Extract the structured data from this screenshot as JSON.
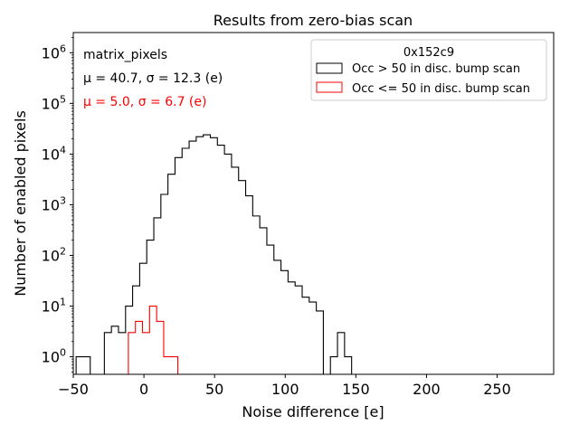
{
  "chart_data": {
    "type": "histogram",
    "title": "Results from zero-bias scan",
    "xlabel": "Noise difference [e]",
    "ylabel": "Number of enabled pixels",
    "xlim": [
      -50,
      290
    ],
    "ylim": [
      0.45,
      2500000
    ],
    "yscale": "log",
    "x_ticks": [
      -50,
      0,
      50,
      100,
      150,
      200,
      250
    ],
    "y_ticks": [
      {
        "value": 1,
        "exp": "0"
      },
      {
        "value": 10,
        "exp": "1"
      },
      {
        "value": 100,
        "exp": "2"
      },
      {
        "value": 1000,
        "exp": "3"
      },
      {
        "value": 10000,
        "exp": "4"
      },
      {
        "value": 100000,
        "exp": "5"
      },
      {
        "value": 1000000,
        "exp": "6"
      }
    ],
    "bin_width": 5,
    "annotations": [
      {
        "text": "matrix_pixels",
        "color": "#000000"
      },
      {
        "text": "μ = 40.7, σ = 12.3 (e)",
        "color": "#000000"
      },
      {
        "text": "μ = 5.0, σ = 6.7 (e)",
        "color": "#ff0000"
      }
    ],
    "legend": {
      "title": "0x152c9",
      "location": "upper right"
    },
    "series": [
      {
        "name": "Occ > 50 in disc. bump scan",
        "color": "#000000",
        "bins": [
          {
            "x0": -48,
            "count": 1
          },
          {
            "x0": -43,
            "count": 1
          },
          {
            "x0": -38,
            "count": 0
          },
          {
            "x0": -33,
            "count": 0
          },
          {
            "x0": -28,
            "count": 3
          },
          {
            "x0": -23,
            "count": 4
          },
          {
            "x0": -18,
            "count": 3
          },
          {
            "x0": -13,
            "count": 10
          },
          {
            "x0": -8,
            "count": 25
          },
          {
            "x0": -3,
            "count": 70
          },
          {
            "x0": 2,
            "count": 200
          },
          {
            "x0": 7,
            "count": 550
          },
          {
            "x0": 12,
            "count": 1600
          },
          {
            "x0": 17,
            "count": 4000
          },
          {
            "x0": 22,
            "count": 8500
          },
          {
            "x0": 27,
            "count": 13000
          },
          {
            "x0": 32,
            "count": 18000
          },
          {
            "x0": 37,
            "count": 22000
          },
          {
            "x0": 42,
            "count": 24000
          },
          {
            "x0": 47,
            "count": 21000
          },
          {
            "x0": 52,
            "count": 15000
          },
          {
            "x0": 57,
            "count": 10000
          },
          {
            "x0": 62,
            "count": 5500
          },
          {
            "x0": 67,
            "count": 3000
          },
          {
            "x0": 72,
            "count": 1500
          },
          {
            "x0": 77,
            "count": 600
          },
          {
            "x0": 82,
            "count": 350
          },
          {
            "x0": 87,
            "count": 160
          },
          {
            "x0": 92,
            "count": 80
          },
          {
            "x0": 97,
            "count": 50
          },
          {
            "x0": 102,
            "count": 30
          },
          {
            "x0": 107,
            "count": 25
          },
          {
            "x0": 112,
            "count": 15
          },
          {
            "x0": 117,
            "count": 12
          },
          {
            "x0": 122,
            "count": 8
          },
          {
            "x0": 127,
            "count": 0
          },
          {
            "x0": 132,
            "count": 1
          },
          {
            "x0": 137,
            "count": 3
          },
          {
            "x0": 142,
            "count": 1
          }
        ]
      },
      {
        "name": "Occ <= 50 in disc. bump scan",
        "color": "#ff0000",
        "bins": [
          {
            "x0": -11,
            "count": 3
          },
          {
            "x0": -6,
            "count": 5
          },
          {
            "x0": -1,
            "count": 3
          },
          {
            "x0": 4,
            "count": 10
          },
          {
            "x0": 9,
            "count": 5
          },
          {
            "x0": 14,
            "count": 1
          },
          {
            "x0": 19,
            "count": 1
          }
        ]
      }
    ]
  }
}
